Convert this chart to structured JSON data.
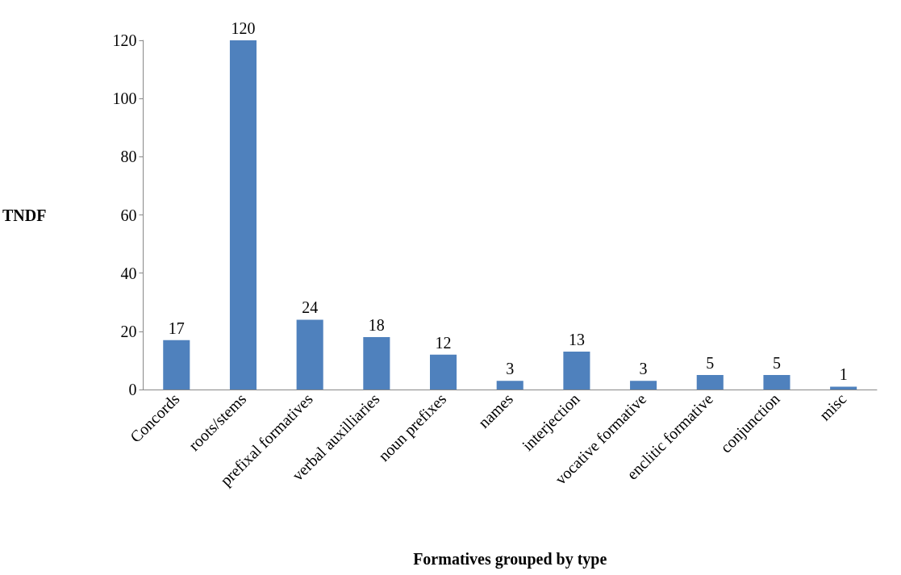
{
  "chart_data": {
    "type": "bar",
    "xlabel": "Formatives grouped by type",
    "ylabel": "TNDF",
    "categories": [
      "Concords",
      "roots/stems",
      "prefixal formatives",
      "verbal auxilliaries",
      "noun prefixes",
      "names",
      "interjection",
      "vocative formative",
      "enclitic formative",
      "conjunction",
      "misc"
    ],
    "values": [
      17,
      120,
      24,
      18,
      12,
      3,
      13,
      3,
      5,
      5,
      1
    ],
    "color": "#4f81bd",
    "ylim": [
      0,
      120
    ],
    "yticks": [
      0,
      20,
      40,
      60,
      80,
      100,
      120
    ],
    "grid": false,
    "data_labels": true
  }
}
